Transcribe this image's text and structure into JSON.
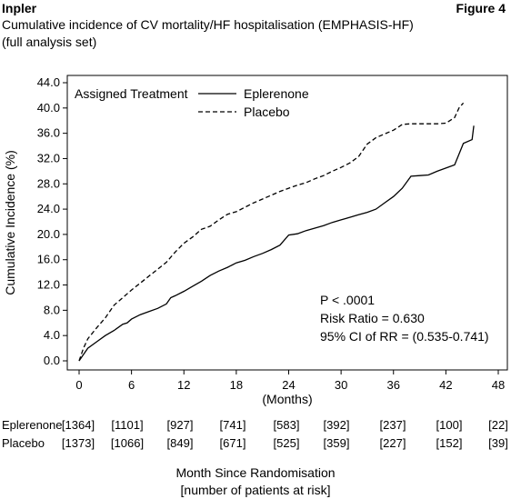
{
  "header": {
    "brand": "Inpler",
    "figure_label": "Figure 4",
    "subtitle_line1": "Cumulative incidence of CV mortality/HF hospitalisation (EMPHASIS-HF)",
    "subtitle_line2": "(full analysis set)"
  },
  "chart_data": {
    "type": "line",
    "xlabel": "(Months)",
    "ylabel": "Cumulative Incidence (%)",
    "xlim": [
      0,
      48
    ],
    "ylim": [
      0,
      44
    ],
    "x_ticks": [
      "0",
      "6",
      "12",
      "18",
      "24",
      "30",
      "36",
      "42",
      "48"
    ],
    "y_ticks": [
      "0.0",
      "4.0",
      "8.0",
      "12.0",
      "16.0",
      "20.0",
      "24.0",
      "28.0",
      "32.0",
      "36.0",
      "40.0",
      "44.0"
    ],
    "legend": {
      "title": "Assigned Treatment",
      "position": "top-left"
    },
    "series": [
      {
        "name": "Eplerenone",
        "style": "solid",
        "color": "#000000",
        "x": [
          0,
          0.5,
          1,
          2,
          3,
          4,
          5,
          5.5,
          6,
          7,
          8,
          9,
          10,
          10.5,
          11,
          12,
          13,
          14,
          15,
          16,
          17,
          18,
          19,
          20,
          21,
          22,
          23,
          24,
          25,
          26,
          27,
          28,
          29,
          30,
          31,
          32,
          33,
          34,
          35,
          36,
          37,
          38,
          39,
          40,
          41,
          42,
          43,
          43.5,
          44,
          45,
          45.2
        ],
        "y": [
          0,
          1.0,
          2.0,
          3.0,
          4.0,
          4.8,
          5.8,
          6.0,
          6.6,
          7.3,
          7.8,
          8.3,
          9.0,
          10.0,
          10.3,
          11.0,
          11.8,
          12.6,
          13.5,
          14.2,
          14.8,
          15.5,
          15.9,
          16.5,
          17.0,
          17.6,
          18.3,
          19.9,
          20.1,
          20.6,
          21.0,
          21.4,
          21.9,
          22.3,
          22.7,
          23.1,
          23.5,
          24.0,
          25.0,
          26.0,
          27.3,
          29.2,
          29.3,
          29.4,
          30.0,
          30.5,
          31.0,
          32.7,
          34.4,
          35.0,
          37.2
        ]
      },
      {
        "name": "Placebo",
        "style": "dashed",
        "color": "#000000",
        "x": [
          0,
          0.5,
          1,
          2,
          3,
          4,
          5,
          6,
          7,
          8,
          9,
          10,
          11,
          12,
          13,
          14,
          15,
          16,
          17,
          18,
          19,
          20,
          21,
          22,
          23,
          24,
          25,
          26,
          27,
          28,
          29,
          30,
          31,
          32,
          33,
          34,
          35,
          36,
          37,
          38,
          39,
          40,
          41,
          42,
          43,
          43.5,
          44
        ],
        "y": [
          0,
          2.0,
          3.5,
          5.2,
          6.8,
          8.8,
          10.0,
          11.2,
          12.3,
          13.4,
          14.5,
          15.6,
          17.2,
          18.6,
          19.6,
          20.8,
          21.3,
          22.3,
          23.2,
          23.6,
          24.3,
          25.0,
          25.6,
          26.2,
          26.8,
          27.3,
          27.8,
          28.2,
          28.8,
          29.3,
          30.0,
          30.6,
          31.3,
          32.3,
          34.3,
          35.3,
          35.9,
          36.5,
          37.4,
          37.5,
          37.5,
          37.5,
          37.5,
          37.6,
          38.5,
          40.0,
          40.8
        ]
      }
    ],
    "annotations": [
      "P < .0001",
      "Risk Ratio = 0.630",
      "95% CI of RR = (0.535-0.741)"
    ],
    "grid": false
  },
  "risk_table": {
    "rows": [
      {
        "label": "Eplerenone",
        "values": [
          "[1364]",
          "[1101]",
          "[927]",
          "[741]",
          "[583]",
          "[392]",
          "[237]",
          "[100]",
          "[22]"
        ]
      },
      {
        "label": "Placebo",
        "values": [
          "[1373]",
          "[1066]",
          "[849]",
          "[671]",
          "[525]",
          "[359]",
          "[227]",
          "[152]",
          "[39]"
        ]
      }
    ]
  },
  "footer": {
    "line1": "Month Since Randomisation",
    "line2": "[number of patients at risk]"
  }
}
